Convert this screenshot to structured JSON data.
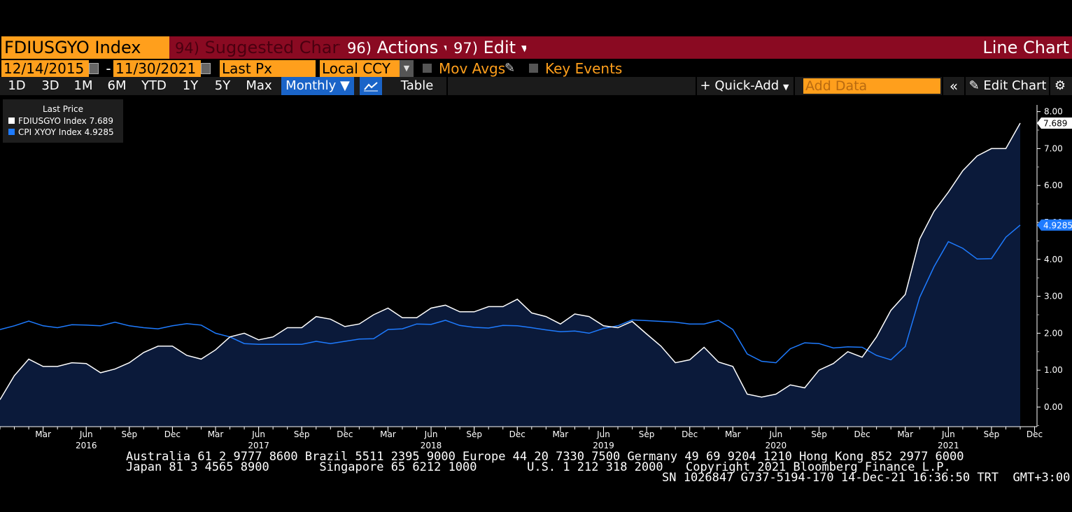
{
  "toolbar1": {
    "ticker": "FDIUSGYO Index",
    "suggested_num": "94)",
    "suggested_label": "Suggested Charts",
    "actions_num": "96)",
    "actions_label": "Actions",
    "edit_num": "97)",
    "edit_label": "Edit",
    "chart_type": "Line Chart"
  },
  "toolbar2": {
    "start_date": "12/14/2015",
    "dash": "-",
    "end_date": "11/30/2021",
    "field": "Last Px",
    "currency": "Local CCY",
    "mov_avgs": "Mov Avgs",
    "key_events": "Key Events"
  },
  "toolbar3": {
    "periods": [
      "1D",
      "3D",
      "1M",
      "6M",
      "YTD",
      "1Y",
      "5Y",
      "Max"
    ],
    "frequency": "Monthly",
    "table_label": "Table",
    "quick_add": "Quick-Add",
    "add_data_placeholder": "Add Data",
    "edit_chart": "Edit Chart"
  },
  "legend": {
    "title": "Last Price",
    "series": [
      {
        "name": "FDIUSGYO Index",
        "value": "7.689",
        "color": "#ffffff"
      },
      {
        "name": "CPI XYOY Index",
        "value": "4.9285",
        "color": "#1e7bff"
      }
    ]
  },
  "chart_data": {
    "type": "line",
    "frequency": "monthly",
    "x_start": "2015-12",
    "x_end": "2021-11",
    "ylim": [
      -0.5,
      8.5
    ],
    "yticks": [
      "8.00",
      "7.00",
      "6.00",
      "5.00",
      "4.00",
      "3.00",
      "2.00",
      "1.00",
      "0.00"
    ],
    "xticks": [
      "Mar",
      "Jun",
      "Sep",
      "Dec",
      "Mar",
      "Jun",
      "Sep",
      "Dec",
      "Mar",
      "Jun",
      "Sep",
      "Dec",
      "Mar",
      "Jun",
      "Sep",
      "Dec",
      "Mar",
      "Jun",
      "Sep",
      "Dec",
      "Mar",
      "Jun",
      "Sep",
      "Dec"
    ],
    "years": [
      "2016",
      "2017",
      "2018",
      "2019",
      "2020",
      "2021"
    ],
    "last_value_labels": [
      "7.689",
      "4.9285"
    ],
    "series": [
      {
        "name": "FDIUSGYO Index",
        "color": "#ffffff",
        "fill": "#0b1a3a",
        "values": [
          0.2,
          0.85,
          1.3,
          1.1,
          1.1,
          1.2,
          1.18,
          0.93,
          1.03,
          1.2,
          1.48,
          1.65,
          1.65,
          1.4,
          1.3,
          1.55,
          1.9,
          2.0,
          1.82,
          1.9,
          2.15,
          2.15,
          2.45,
          2.38,
          2.18,
          2.25,
          2.5,
          2.68,
          2.42,
          2.42,
          2.68,
          2.76,
          2.58,
          2.58,
          2.72,
          2.72,
          2.92,
          2.55,
          2.45,
          2.25,
          2.52,
          2.45,
          2.2,
          2.15,
          2.32,
          1.98,
          1.65,
          1.2,
          1.28,
          1.62,
          1.22,
          1.1,
          0.35,
          0.27,
          0.35,
          0.6,
          0.52,
          1.0,
          1.18,
          1.5,
          1.35,
          1.9,
          2.62,
          3.05,
          4.55,
          5.3,
          5.82,
          6.4,
          6.8,
          7.0,
          7.0,
          7.689
        ]
      },
      {
        "name": "CPI XYOY Index",
        "color": "#1e7bff",
        "values": [
          2.1,
          2.2,
          2.33,
          2.2,
          2.15,
          2.23,
          2.22,
          2.2,
          2.3,
          2.2,
          2.15,
          2.12,
          2.2,
          2.26,
          2.22,
          2.0,
          1.9,
          1.72,
          1.7,
          1.7,
          1.7,
          1.7,
          1.78,
          1.72,
          1.78,
          1.84,
          1.85,
          2.1,
          2.12,
          2.25,
          2.24,
          2.35,
          2.21,
          2.16,
          2.14,
          2.21,
          2.2,
          2.15,
          2.09,
          2.04,
          2.06,
          2.0,
          2.13,
          2.2,
          2.36,
          2.34,
          2.32,
          2.3,
          2.25,
          2.25,
          2.35,
          2.1,
          1.44,
          1.24,
          1.2,
          1.58,
          1.74,
          1.72,
          1.6,
          1.63,
          1.62,
          1.4,
          1.28,
          1.64,
          2.97,
          3.8,
          4.48,
          4.3,
          4.01,
          4.02,
          4.6,
          4.9285
        ]
      }
    ]
  },
  "footer": {
    "line1": "Australia 61 2 9777 8600 Brazil 5511 2395 9000 Europe 44 20 7330 7500 Germany 49 69 9204 1210 Hong Kong 852 2977 6000",
    "line2_left": "Japan 81 3 4565 8900       Singapore 65 6212 1000       U.S. 1 212 318 2000",
    "line2_right": "Copyright 2021 Bloomberg Finance L.P.",
    "line3": "SN 1026847 G737-5194-170 14-Dec-21 16:36:50 TRT  GMT+3:00"
  }
}
